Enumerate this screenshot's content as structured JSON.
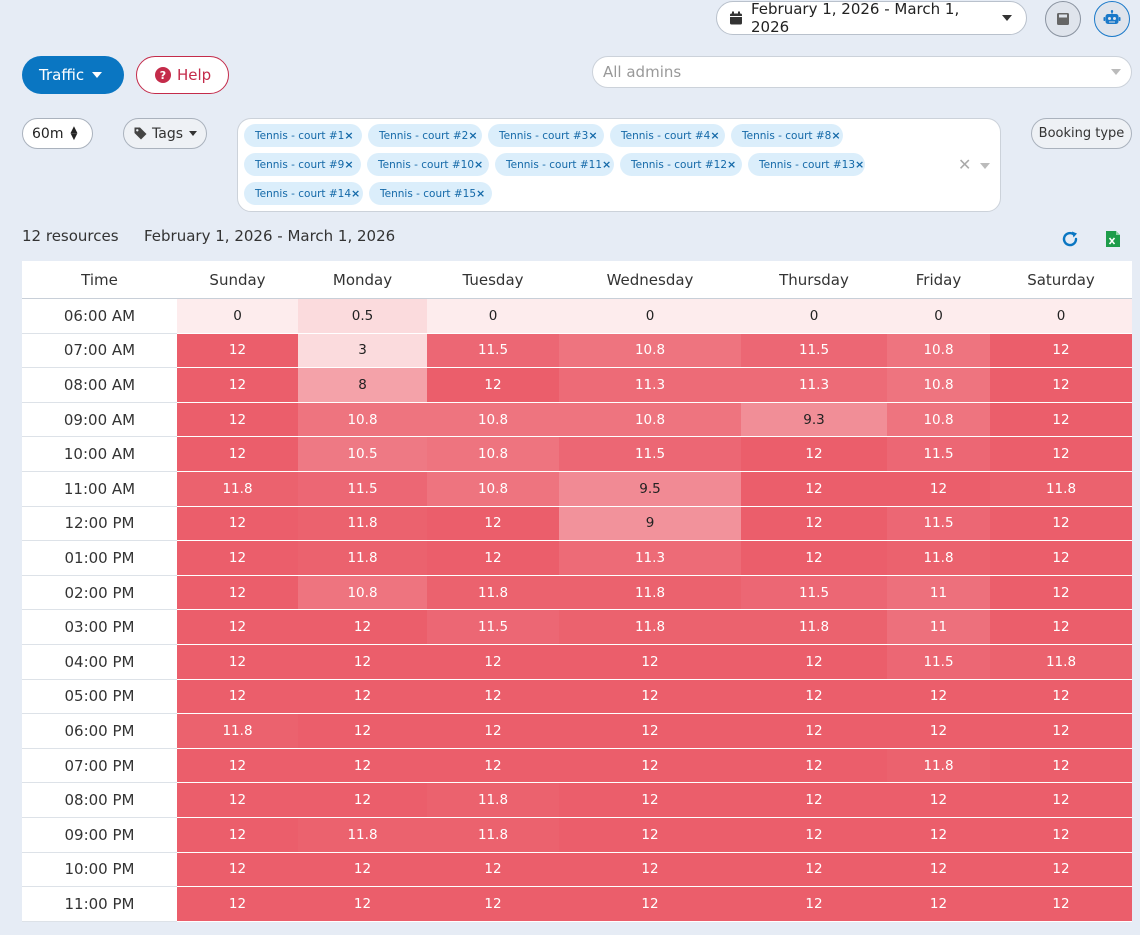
{
  "header": {
    "date_range": "February 1, 2026 - March 1, 2026"
  },
  "toolbar": {
    "traffic_label": "Traffic",
    "help_label": "Help",
    "admins_placeholder": "All admins",
    "interval_value": "60m",
    "tags_label": "Tags",
    "booking_type_label": "Booking type"
  },
  "resources": [
    "Tennis - court #1",
    "Tennis - court #2",
    "Tennis - court #3",
    "Tennis - court #4",
    "Tennis - court #8",
    "Tennis - court #9",
    "Tennis - court #10",
    "Tennis - court #11",
    "Tennis - court #12",
    "Tennis - court #13",
    "Tennis - court #14",
    "Tennis - court #15"
  ],
  "summary": {
    "count": "12 resources",
    "range": "February 1, 2026 - March 1, 2026"
  },
  "heatmap": {
    "columns": [
      "Time",
      "Sunday",
      "Monday",
      "Tuesday",
      "Wednesday",
      "Thursday",
      "Friday",
      "Saturday"
    ],
    "max": 12,
    "rows": [
      {
        "time": "06:00 AM",
        "values": [
          "0",
          "0.5",
          "0",
          "0",
          "0",
          "0",
          "0"
        ]
      },
      {
        "time": "07:00 AM",
        "values": [
          "12",
          "3",
          "11.5",
          "10.8",
          "11.5",
          "10.8",
          "12"
        ]
      },
      {
        "time": "08:00 AM",
        "values": [
          "12",
          "8",
          "12",
          "11.3",
          "11.3",
          "10.8",
          "12"
        ]
      },
      {
        "time": "09:00 AM",
        "values": [
          "12",
          "10.8",
          "10.8",
          "10.8",
          "9.3",
          "10.8",
          "12"
        ]
      },
      {
        "time": "10:00 AM",
        "values": [
          "12",
          "10.5",
          "10.8",
          "11.5",
          "12",
          "11.5",
          "12"
        ]
      },
      {
        "time": "11:00 AM",
        "values": [
          "11.8",
          "11.5",
          "10.8",
          "9.5",
          "12",
          "12",
          "11.8"
        ]
      },
      {
        "time": "12:00 PM",
        "values": [
          "12",
          "11.8",
          "12",
          "9",
          "12",
          "11.5",
          "12"
        ]
      },
      {
        "time": "01:00 PM",
        "values": [
          "12",
          "11.8",
          "12",
          "11.3",
          "12",
          "11.8",
          "12"
        ]
      },
      {
        "time": "02:00 PM",
        "values": [
          "12",
          "10.8",
          "11.8",
          "11.8",
          "11.5",
          "11",
          "12"
        ]
      },
      {
        "time": "03:00 PM",
        "values": [
          "12",
          "12",
          "11.5",
          "11.8",
          "11.8",
          "11",
          "12"
        ]
      },
      {
        "time": "04:00 PM",
        "values": [
          "12",
          "12",
          "12",
          "12",
          "12",
          "11.5",
          "11.8"
        ]
      },
      {
        "time": "05:00 PM",
        "values": [
          "12",
          "12",
          "12",
          "12",
          "12",
          "12",
          "12"
        ]
      },
      {
        "time": "06:00 PM",
        "values": [
          "11.8",
          "12",
          "12",
          "12",
          "12",
          "12",
          "12"
        ]
      },
      {
        "time": "07:00 PM",
        "values": [
          "12",
          "12",
          "12",
          "12",
          "12",
          "11.8",
          "12"
        ]
      },
      {
        "time": "08:00 PM",
        "values": [
          "12",
          "12",
          "11.8",
          "12",
          "12",
          "12",
          "12"
        ]
      },
      {
        "time": "09:00 PM",
        "values": [
          "12",
          "11.8",
          "11.8",
          "12",
          "12",
          "12",
          "12"
        ]
      },
      {
        "time": "10:00 PM",
        "values": [
          "12",
          "12",
          "12",
          "12",
          "12",
          "12",
          "12"
        ]
      },
      {
        "time": "11:00 PM",
        "values": [
          "12",
          "12",
          "12",
          "12",
          "12",
          "12",
          "12"
        ]
      }
    ]
  },
  "colors": {
    "primary": "#0a76c2",
    "help": "#c42b4a",
    "heat_low": "#fdeced",
    "heat_high": "#eb5e6b"
  }
}
